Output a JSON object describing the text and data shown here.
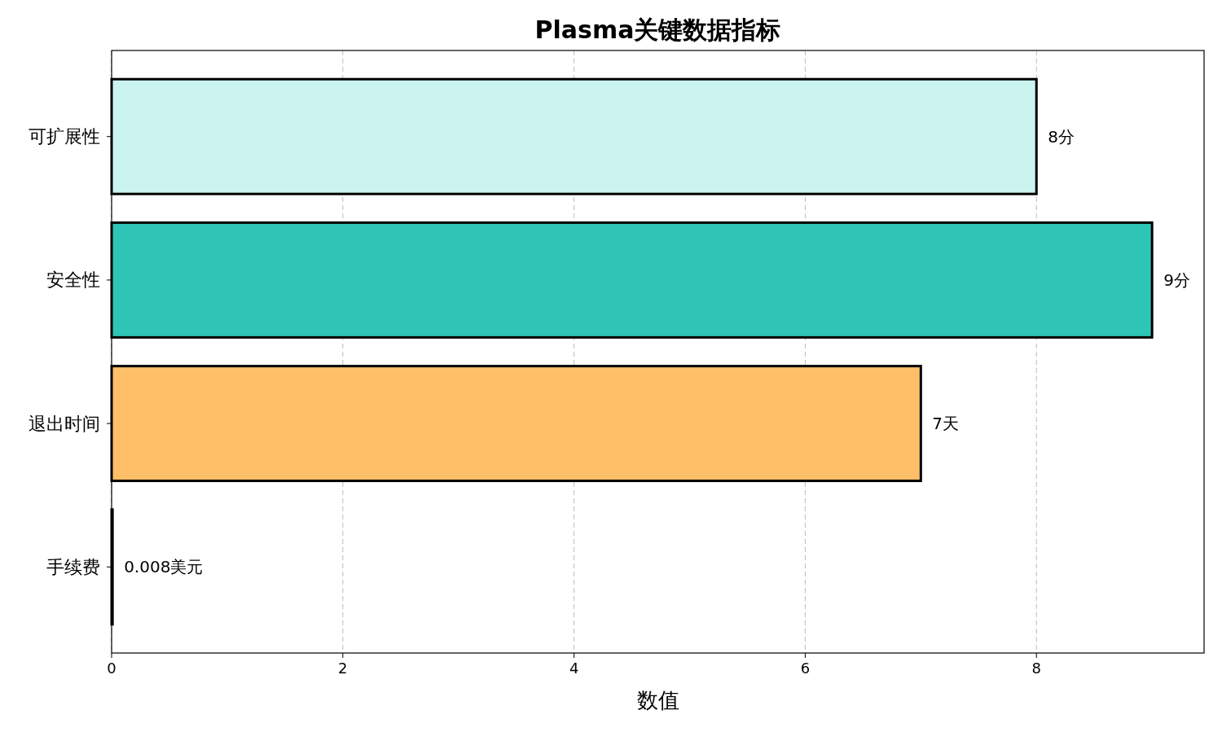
{
  "chart_data": {
    "type": "bar",
    "orientation": "horizontal",
    "title": "Plasma关键数据指标",
    "xlabel": "数值",
    "categories": [
      "可扩展性",
      "安全性",
      "退出时间",
      "手续费"
    ],
    "values": [
      8,
      9,
      7,
      0.008
    ],
    "colors": [
      "#cbf3f0",
      "#2ec4b6",
      "#ffbf69",
      "#ff9f1c"
    ],
    "value_labels": [
      "8分",
      "9分",
      "7天",
      "0.008美元"
    ],
    "xlim": [
      0,
      9.45
    ],
    "xticks": [
      0,
      2,
      4,
      6,
      8
    ],
    "grid": "x"
  }
}
